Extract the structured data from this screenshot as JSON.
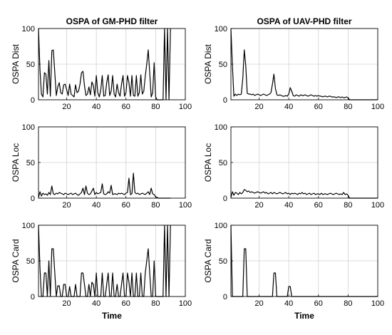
{
  "chart_data": [
    {
      "type": "line",
      "title": "OSPA of GM-PHD filter",
      "ylabel": "OSPA Dist",
      "xlabel": "",
      "xlim": [
        1,
        100
      ],
      "ylim": [
        0,
        100
      ],
      "xticks": [
        "20",
        "40",
        "60",
        "80",
        "100"
      ],
      "yticks": [
        "0",
        "50",
        "100"
      ],
      "grid": true,
      "x": [
        1,
        2,
        3,
        4,
        5,
        6,
        7,
        8,
        9,
        10,
        11,
        12,
        13,
        14,
        15,
        16,
        17,
        18,
        19,
        20,
        21,
        22,
        23,
        24,
        25,
        26,
        27,
        28,
        29,
        30,
        31,
        32,
        33,
        34,
        35,
        36,
        37,
        38,
        39,
        40,
        41,
        42,
        43,
        44,
        45,
        46,
        47,
        48,
        49,
        50,
        51,
        52,
        53,
        54,
        55,
        56,
        57,
        58,
        59,
        60,
        61,
        62,
        63,
        64,
        65,
        66,
        67,
        68,
        69,
        70,
        71,
        72,
        73,
        74,
        75,
        76,
        77,
        78,
        79,
        80,
        81,
        82,
        83,
        84,
        85,
        86,
        87,
        88,
        89,
        90
      ],
      "y": [
        100,
        42,
        8,
        4,
        38,
        36,
        8,
        55,
        5,
        69,
        70,
        38,
        6,
        18,
        24,
        10,
        8,
        21,
        22,
        14,
        6,
        22,
        8,
        6,
        4,
        21,
        10,
        12,
        22,
        38,
        40,
        20,
        6,
        8,
        18,
        7,
        25,
        20,
        5,
        34,
        10,
        4,
        14,
        34,
        5,
        6,
        24,
        35,
        6,
        12,
        34,
        8,
        4,
        22,
        10,
        5,
        22,
        34,
        5,
        10,
        34,
        24,
        5,
        34,
        6,
        5,
        34,
        5,
        10,
        35,
        8,
        12,
        33,
        50,
        70,
        38,
        4,
        10,
        52,
        4,
        0,
        0,
        0,
        0,
        0,
        100,
        0,
        100,
        0,
        100
      ]
    },
    {
      "type": "line",
      "title": "OSPA of UAV-PHD filter",
      "ylabel": "OSPA Dist",
      "xlabel": "",
      "xlim": [
        1,
        100
      ],
      "ylim": [
        0,
        100
      ],
      "xticks": [
        "20",
        "40",
        "60",
        "80",
        "100"
      ],
      "yticks": [
        "0",
        "50",
        "100"
      ],
      "grid": true,
      "x": [
        1,
        2,
        3,
        4,
        5,
        6,
        7,
        8,
        9,
        10,
        11,
        12,
        13,
        14,
        15,
        16,
        17,
        18,
        19,
        20,
        21,
        22,
        23,
        24,
        25,
        26,
        27,
        28,
        29,
        30,
        31,
        32,
        33,
        34,
        35,
        36,
        37,
        38,
        39,
        40,
        41,
        42,
        43,
        44,
        45,
        46,
        47,
        48,
        49,
        50,
        51,
        52,
        53,
        54,
        55,
        56,
        57,
        58,
        59,
        60,
        61,
        62,
        63,
        64,
        65,
        66,
        67,
        68,
        69,
        70,
        71,
        72,
        73,
        74,
        75,
        76,
        77,
        78,
        79,
        80,
        81,
        82,
        83,
        84,
        85,
        86,
        87,
        88,
        89,
        90,
        91,
        92,
        93,
        94,
        95,
        96,
        97,
        98,
        99,
        100
      ],
      "y": [
        100,
        48,
        5,
        8,
        6,
        8,
        7,
        8,
        30,
        70,
        48,
        9,
        8,
        8,
        7,
        8,
        6,
        7,
        8,
        7,
        6,
        7,
        8,
        7,
        6,
        7,
        8,
        10,
        22,
        36,
        16,
        7,
        6,
        7,
        6,
        5,
        5,
        6,
        5,
        8,
        17,
        12,
        6,
        5,
        7,
        6,
        5,
        7,
        6,
        6,
        7,
        6,
        5,
        6,
        7,
        6,
        5,
        6,
        5,
        6,
        5,
        5,
        4,
        5,
        5,
        4,
        5,
        5,
        4,
        4,
        4,
        3,
        4,
        4,
        3,
        4,
        3,
        3,
        4,
        3,
        0,
        0,
        0,
        0,
        0,
        0,
        0,
        0,
        0,
        0,
        0,
        0,
        0,
        0,
        0,
        0,
        0,
        0,
        0,
        0
      ]
    },
    {
      "type": "line",
      "title": "",
      "ylabel": "OSPA Loc",
      "xlabel": "",
      "xlim": [
        1,
        100
      ],
      "ylim": [
        0,
        100
      ],
      "xticks": [
        "20",
        "40",
        "60",
        "80",
        "100"
      ],
      "yticks": [
        "0",
        "50",
        "100"
      ],
      "grid": true,
      "x": [
        1,
        2,
        3,
        4,
        5,
        6,
        7,
        8,
        9,
        10,
        11,
        12,
        13,
        14,
        15,
        16,
        17,
        18,
        19,
        20,
        21,
        22,
        23,
        24,
        25,
        26,
        27,
        28,
        29,
        30,
        31,
        32,
        33,
        34,
        35,
        36,
        37,
        38,
        39,
        40,
        41,
        42,
        43,
        44,
        45,
        46,
        47,
        48,
        49,
        50,
        51,
        52,
        53,
        54,
        55,
        56,
        57,
        58,
        59,
        60,
        61,
        62,
        63,
        64,
        65,
        66,
        67,
        68,
        69,
        70,
        71,
        72,
        73,
        74,
        75,
        76,
        77,
        78,
        79,
        80,
        81,
        82,
        83,
        84,
        85,
        86,
        87,
        88,
        89,
        90
      ],
      "y": [
        1,
        9,
        3,
        7,
        5,
        6,
        4,
        8,
        5,
        17,
        6,
        5,
        7,
        6,
        8,
        7,
        6,
        5,
        7,
        6,
        5,
        6,
        7,
        5,
        6,
        7,
        5,
        4,
        6,
        8,
        14,
        5,
        17,
        7,
        5,
        6,
        10,
        14,
        5,
        8,
        6,
        7,
        8,
        20,
        6,
        5,
        6,
        9,
        7,
        18,
        5,
        6,
        6,
        5,
        7,
        6,
        7,
        6,
        5,
        7,
        8,
        28,
        5,
        6,
        35,
        8,
        6,
        7,
        5,
        6,
        7,
        6,
        5,
        7,
        9,
        5,
        14,
        6,
        5,
        2,
        1,
        0,
        0,
        0,
        0,
        0,
        0,
        0,
        0,
        0
      ]
    },
    {
      "type": "line",
      "title": "",
      "ylabel": "OSPA Loc",
      "xlabel": "",
      "xlim": [
        1,
        100
      ],
      "ylim": [
        0,
        100
      ],
      "xticks": [
        "20",
        "40",
        "60",
        "80",
        "100"
      ],
      "yticks": [
        "0",
        "50",
        "100"
      ],
      "grid": true,
      "x": [
        1,
        2,
        3,
        4,
        5,
        6,
        7,
        8,
        9,
        10,
        11,
        12,
        13,
        14,
        15,
        16,
        17,
        18,
        19,
        20,
        21,
        22,
        23,
        24,
        25,
        26,
        27,
        28,
        29,
        30,
        31,
        32,
        33,
        34,
        35,
        36,
        37,
        38,
        39,
        40,
        41,
        42,
        43,
        44,
        45,
        46,
        47,
        48,
        49,
        50,
        51,
        52,
        53,
        54,
        55,
        56,
        57,
        58,
        59,
        60,
        61,
        62,
        63,
        64,
        65,
        66,
        67,
        68,
        69,
        70,
        71,
        72,
        73,
        74,
        75,
        76,
        77,
        78,
        79,
        80,
        81,
        82,
        83,
        84,
        85,
        86,
        87,
        88,
        89,
        90,
        91,
        92,
        93,
        94,
        95,
        96,
        97,
        98,
        99,
        100
      ],
      "y": [
        1,
        9,
        4,
        8,
        7,
        5,
        8,
        6,
        8,
        12,
        11,
        9,
        10,
        8,
        9,
        8,
        7,
        8,
        9,
        8,
        7,
        8,
        9,
        7,
        8,
        6,
        7,
        8,
        6,
        8,
        7,
        6,
        7,
        8,
        7,
        6,
        7,
        8,
        6,
        7,
        5,
        7,
        6,
        7,
        6,
        5,
        7,
        6,
        8,
        6,
        7,
        5,
        6,
        7,
        5,
        6,
        7,
        5,
        6,
        6,
        5,
        7,
        5,
        6,
        6,
        5,
        6,
        7,
        6,
        5,
        6,
        7,
        6,
        5,
        6,
        5,
        8,
        5,
        6,
        4,
        0,
        0,
        0,
        0,
        0,
        0,
        0,
        0,
        0,
        0,
        0,
        0,
        0,
        0,
        0,
        0,
        0,
        0,
        0,
        0
      ]
    },
    {
      "type": "line",
      "title": "",
      "ylabel": "OSPA Card",
      "xlabel": "Time",
      "xlim": [
        1,
        100
      ],
      "ylim": [
        0,
        100
      ],
      "xticks": [
        "20",
        "40",
        "60",
        "80",
        "100"
      ],
      "yticks": [
        "0",
        "50",
        "100"
      ],
      "grid": true,
      "x": [
        1,
        2,
        3,
        4,
        5,
        6,
        7,
        8,
        9,
        10,
        11,
        12,
        13,
        14,
        15,
        16,
        17,
        18,
        19,
        20,
        21,
        22,
        23,
        24,
        25,
        26,
        27,
        28,
        29,
        30,
        31,
        32,
        33,
        34,
        35,
        36,
        37,
        38,
        39,
        40,
        41,
        42,
        43,
        44,
        45,
        46,
        47,
        48,
        49,
        50,
        51,
        52,
        53,
        54,
        55,
        56,
        57,
        58,
        59,
        60,
        61,
        62,
        63,
        64,
        65,
        66,
        67,
        68,
        69,
        70,
        71,
        72,
        73,
        74,
        75,
        76,
        77,
        78,
        79,
        80,
        81,
        82,
        83,
        84,
        85,
        86,
        87,
        88,
        89,
        90
      ],
      "y": [
        100,
        40,
        0,
        0,
        33,
        33,
        0,
        50,
        0,
        67,
        67,
        33,
        0,
        15,
        15,
        0,
        0,
        17,
        17,
        0,
        0,
        14,
        0,
        0,
        0,
        17,
        0,
        0,
        0,
        33,
        33,
        17,
        0,
        0,
        17,
        0,
        20,
        17,
        0,
        33,
        0,
        0,
        0,
        33,
        0,
        0,
        17,
        33,
        0,
        0,
        33,
        0,
        0,
        17,
        0,
        0,
        17,
        33,
        0,
        0,
        33,
        20,
        0,
        33,
        0,
        0,
        33,
        0,
        0,
        33,
        0,
        0,
        33,
        50,
        67,
        33,
        0,
        0,
        50,
        0,
        0,
        0,
        0,
        0,
        0,
        100,
        0,
        100,
        0,
        100
      ]
    },
    {
      "type": "line",
      "title": "",
      "ylabel": "OSPA Card",
      "xlabel": "Time",
      "xlim": [
        1,
        100
      ],
      "ylim": [
        0,
        100
      ],
      "xticks": [
        "20",
        "40",
        "60",
        "80",
        "100"
      ],
      "yticks": [
        "0",
        "50",
        "100"
      ],
      "grid": true,
      "x": [
        1,
        2,
        3,
        4,
        5,
        6,
        7,
        8,
        9,
        10,
        11,
        12,
        13,
        14,
        15,
        16,
        17,
        18,
        19,
        20,
        21,
        22,
        23,
        24,
        25,
        26,
        27,
        28,
        29,
        30,
        31,
        32,
        33,
        34,
        35,
        36,
        37,
        38,
        39,
        40,
        41,
        42,
        43,
        44,
        45,
        46,
        47,
        48,
        49,
        50,
        51,
        52,
        53,
        54,
        55,
        56,
        57,
        58,
        59,
        60,
        61,
        62,
        63,
        64,
        65,
        66,
        67,
        68,
        69,
        70,
        71,
        72,
        73,
        74,
        75,
        76,
        77,
        78,
        79,
        80,
        81,
        82,
        83,
        84,
        85,
        86,
        87,
        88,
        89,
        90,
        91,
        92,
        93,
        94,
        95,
        96,
        97,
        98,
        99,
        100
      ],
      "y": [
        100,
        0,
        0,
        0,
        0,
        0,
        0,
        0,
        0,
        67,
        67,
        0,
        0,
        0,
        0,
        0,
        0,
        0,
        0,
        0,
        0,
        0,
        0,
        0,
        0,
        0,
        0,
        0,
        0,
        33,
        33,
        0,
        0,
        0,
        0,
        0,
        0,
        0,
        0,
        14,
        14,
        0,
        0,
        0,
        0,
        0,
        0,
        0,
        0,
        0,
        0,
        0,
        0,
        0,
        0,
        0,
        0,
        0,
        0,
        0,
        0,
        0,
        0,
        0,
        0,
        0,
        0,
        0,
        0,
        0,
        0,
        0,
        0,
        0,
        0,
        0,
        0,
        0,
        0,
        0,
        0,
        0,
        0,
        0,
        0,
        0,
        0,
        0,
        0,
        0,
        0,
        0,
        0,
        0,
        0,
        0,
        0,
        0,
        0,
        0
      ]
    }
  ]
}
